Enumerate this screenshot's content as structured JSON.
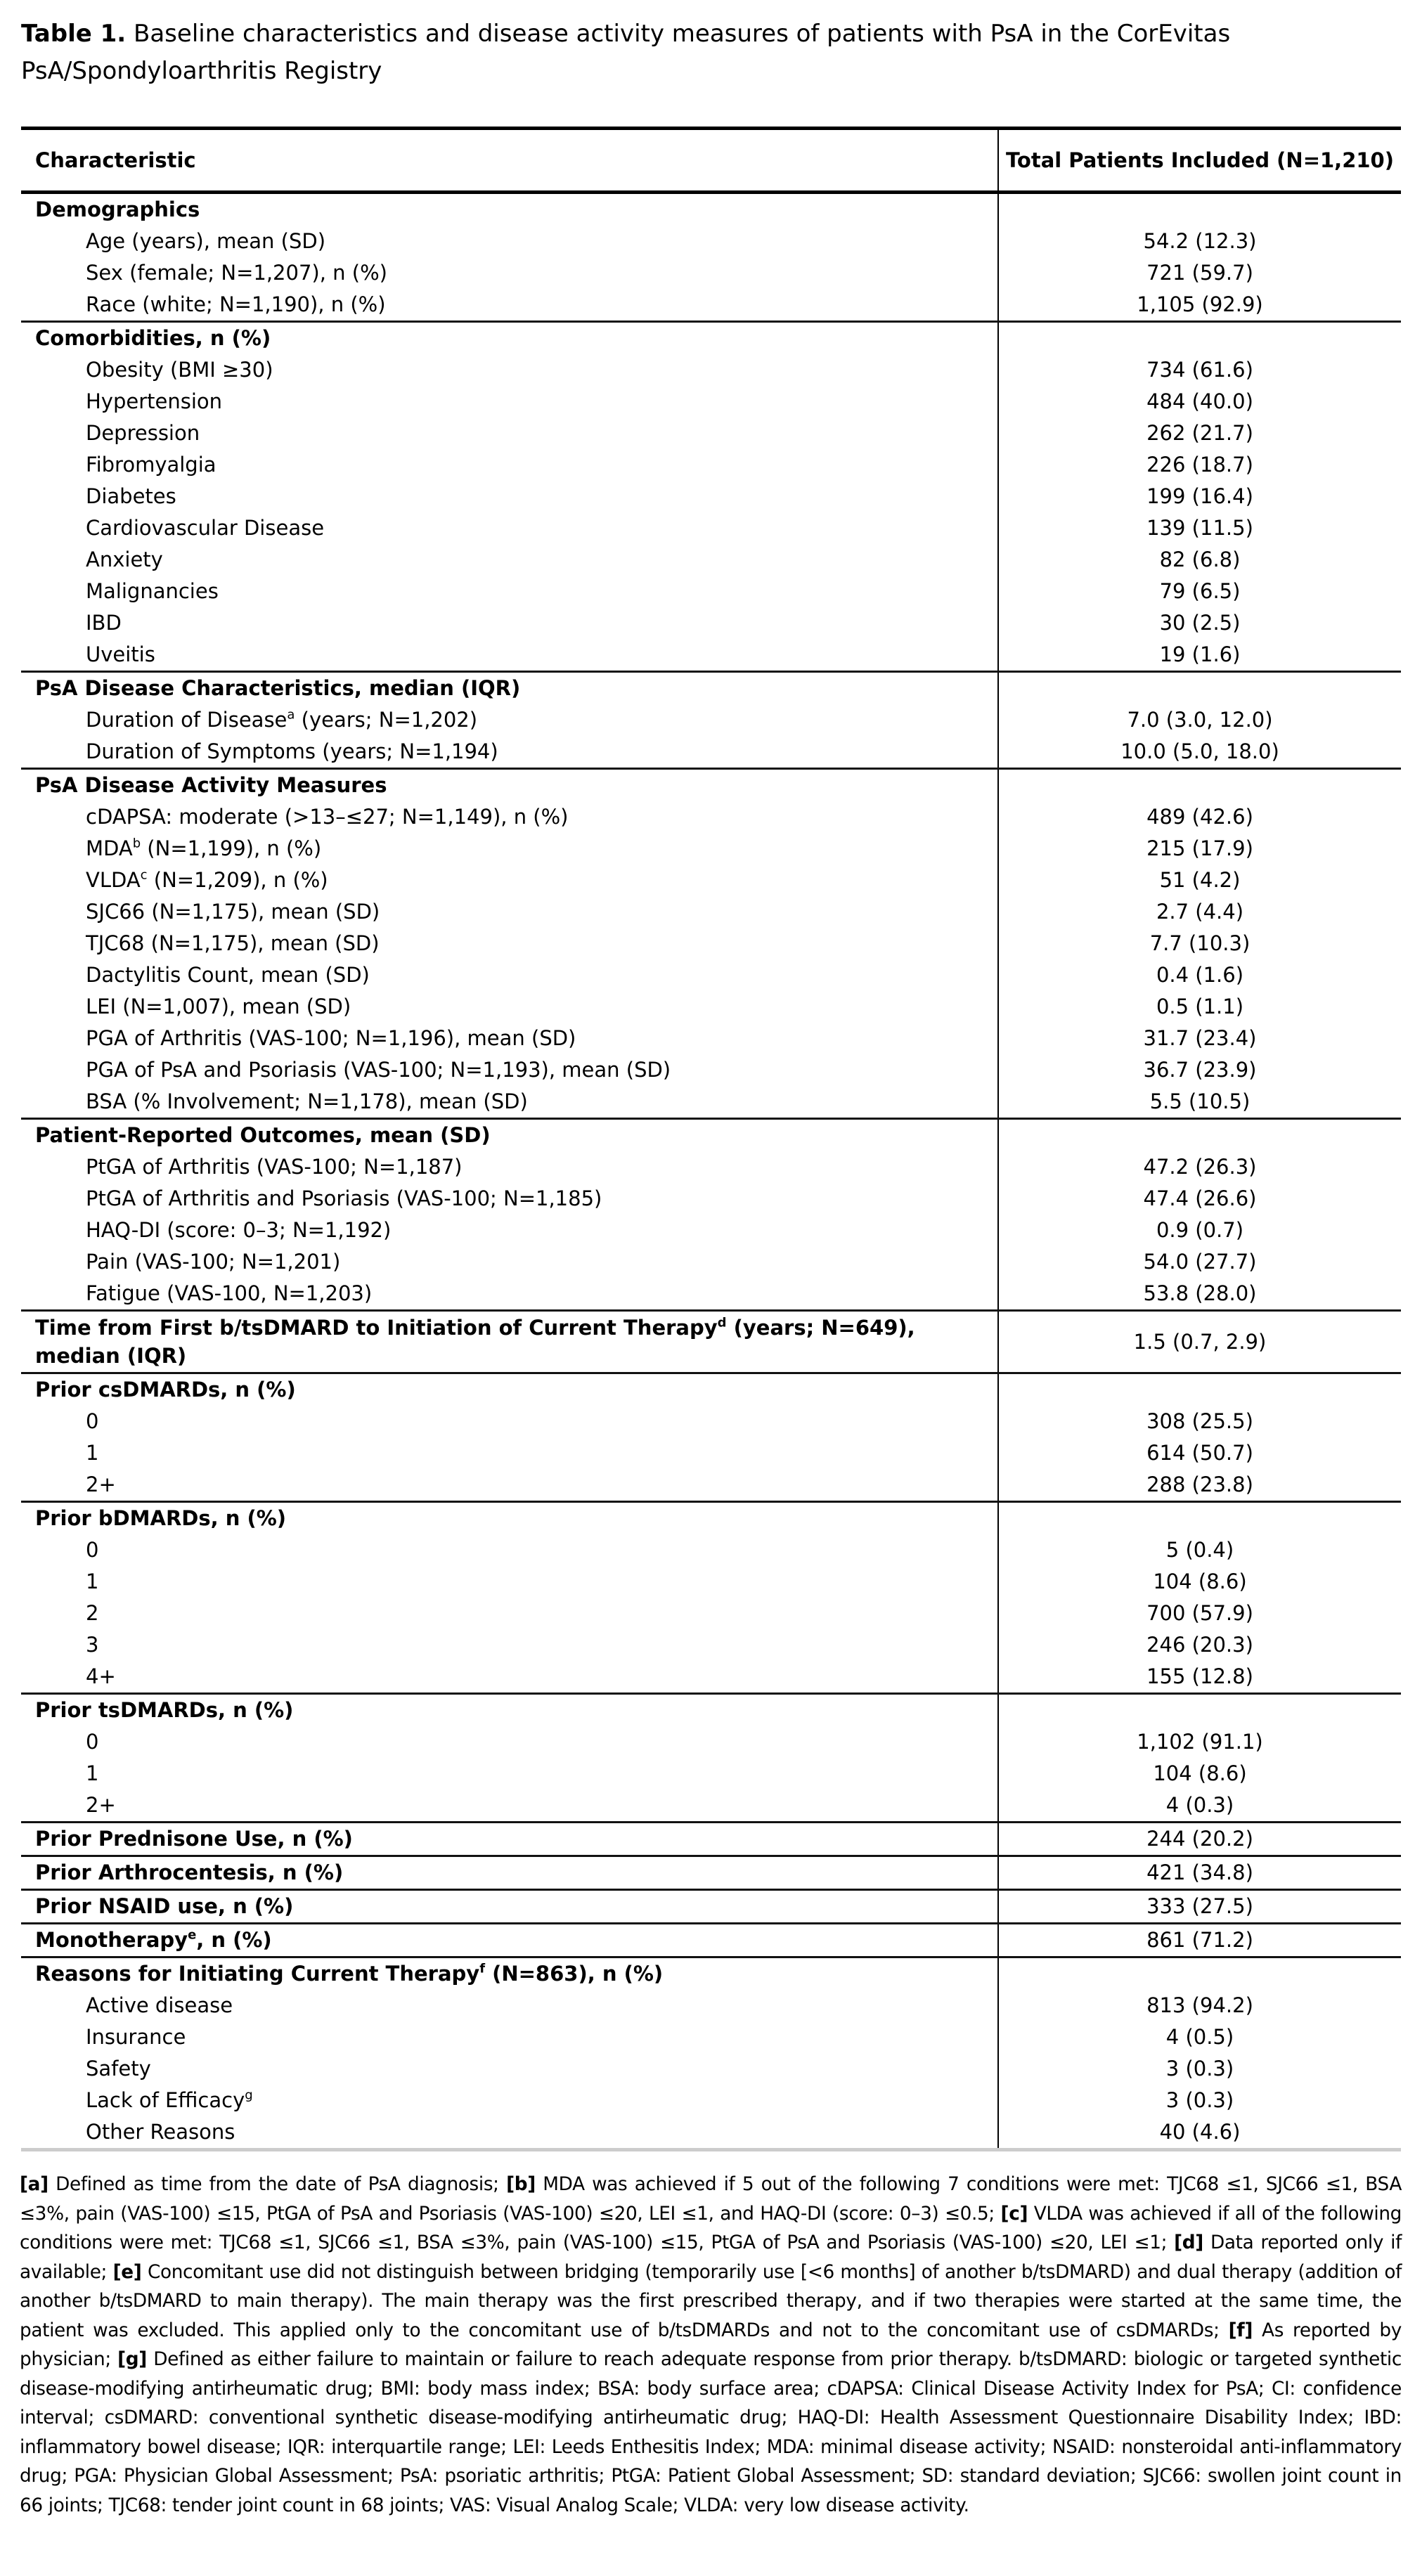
{
  "title": {
    "label": "Table 1.",
    "text": " Baseline characteristics and disease activity measures of patients with PsA in the CorEvitas PsA/Spondyloarthritis Registry"
  },
  "table": {
    "col_characteristic": "Characteristic",
    "col_total": "Total Patients Included (N=1,210)",
    "sections": [
      {
        "label": "Demographics",
        "items": [
          {
            "label": "Age (years), mean (SD)",
            "value": "54.2 (12.3)"
          },
          {
            "label": "Sex (female; N=1,207), n (%)",
            "value": "721 (59.7)"
          },
          {
            "label": "Race (white; N=1,190), n (%)",
            "value": "1,105 (92.9)"
          }
        ]
      },
      {
        "label": "Comorbidities, n (%)",
        "items": [
          {
            "label": "Obesity (BMI ≥30)",
            "value": "734 (61.6)"
          },
          {
            "label": "Hypertension",
            "value": "484 (40.0)"
          },
          {
            "label": "Depression",
            "value": "262 (21.7)"
          },
          {
            "label": "Fibromyalgia",
            "value": "226 (18.7)"
          },
          {
            "label": "Diabetes",
            "value": "199 (16.4)"
          },
          {
            "label": "Cardiovascular Disease",
            "value": "139 (11.5)"
          },
          {
            "label": "Anxiety",
            "value": "82 (6.8)"
          },
          {
            "label": "Malignancies",
            "value": "79 (6.5)"
          },
          {
            "label": "IBD",
            "value": "30 (2.5)"
          },
          {
            "label": "Uveitis",
            "value": "19 (1.6)"
          }
        ]
      },
      {
        "label": "PsA Disease Characteristics, median (IQR)",
        "items": [
          {
            "label": "Duration of Disease",
            "sup": "a",
            "label_after": " (years; N=1,202)",
            "value": "7.0 (3.0, 12.0)"
          },
          {
            "label": "Duration of Symptoms (years; N=1,194)",
            "value": "10.0 (5.0, 18.0)"
          }
        ]
      },
      {
        "label": "PsA Disease Activity Measures",
        "items": [
          {
            "label": "cDAPSA: moderate (>13–≤27; N=1,149), n (%)",
            "value": "489 (42.6)"
          },
          {
            "label": "MDA",
            "sup": "b",
            "label_after": " (N=1,199), n (%)",
            "value": "215 (17.9)"
          },
          {
            "label": "VLDA",
            "sup": "c",
            "label_after": " (N=1,209), n (%)",
            "value": "51 (4.2)"
          },
          {
            "label": "SJC66 (N=1,175), mean (SD)",
            "value": "2.7 (4.4)"
          },
          {
            "label": "TJC68 (N=1,175), mean (SD)",
            "value": "7.7 (10.3)"
          },
          {
            "label": "Dactylitis Count, mean (SD)",
            "value": "0.4 (1.6)"
          },
          {
            "label": "LEI (N=1,007), mean (SD)",
            "value": "0.5 (1.1)"
          },
          {
            "label": "PGA of Arthritis (VAS-100; N=1,196), mean (SD)",
            "value": "31.7 (23.4)"
          },
          {
            "label": "PGA of PsA and Psoriasis (VAS-100; N=1,193), mean (SD)",
            "value": "36.7 (23.9)"
          },
          {
            "label": "BSA (% Involvement; N=1,178), mean (SD)",
            "value": "5.5 (10.5)"
          }
        ]
      },
      {
        "label": "Patient-Reported Outcomes, mean (SD)",
        "items": [
          {
            "label": "PtGA of Arthritis (VAS-100; N=1,187)",
            "value": "47.2 (26.3)"
          },
          {
            "label": "PtGA of Arthritis and Psoriasis (VAS-100; N=1,185)",
            "value": "47.4 (26.6)"
          },
          {
            "label": "HAQ-DI (score: 0–3; N=1,192)",
            "value": "0.9 (0.7)"
          },
          {
            "label": "Pain (VAS-100; N=1,201)",
            "value": "54.0 (27.7)"
          },
          {
            "label": "Fatigue (VAS-100, N=1,203)",
            "value": "53.8 (28.0)"
          }
        ]
      },
      {
        "label": "Time from First b/tsDMARD to Initiation of Current Therapy",
        "sup": "d",
        "label_after": " (years; N=649), median (IQR)",
        "value": "1.5 (0.7, 2.9)",
        "multiline": true,
        "items": []
      },
      {
        "label": "Prior csDMARDs, n (%)",
        "items": [
          {
            "label": "0",
            "value": "308 (25.5)"
          },
          {
            "label": "1",
            "value": "614 (50.7)"
          },
          {
            "label": "2+",
            "value": "288 (23.8)"
          }
        ]
      },
      {
        "label": "Prior bDMARDs, n (%)",
        "items": [
          {
            "label": "0",
            "value": "5 (0.4)"
          },
          {
            "label": "1",
            "value": "104 (8.6)"
          },
          {
            "label": "2",
            "value": "700 (57.9)"
          },
          {
            "label": "3",
            "value": "246 (20.3)"
          },
          {
            "label": "4+",
            "value": "155 (12.8)"
          }
        ]
      },
      {
        "label": "Prior tsDMARDs, n (%)",
        "items": [
          {
            "label": "0",
            "value": "1,102 (91.1)"
          },
          {
            "label": "1",
            "value": "104 (8.6)"
          },
          {
            "label": "2+",
            "value": "4 (0.3)"
          }
        ]
      },
      {
        "label": "Prior Prednisone Use, n (%)",
        "value": "244 (20.2)",
        "items": []
      },
      {
        "label": "Prior Arthrocentesis, n (%)",
        "value": "421 (34.8)",
        "items": []
      },
      {
        "label": "Prior NSAID use, n (%)",
        "value": "333 (27.5)",
        "items": []
      },
      {
        "label": "Monotherapy",
        "sup": "e",
        "label_after": ", n (%)",
        "value": "861 (71.2)",
        "items": []
      },
      {
        "label": "Reasons for Initiating Current Therapy",
        "sup": "f",
        "label_after": " (N=863), n (%)",
        "items": [
          {
            "label": "Active disease",
            "value": "813 (94.2)"
          },
          {
            "label": "Insurance",
            "value": "4 (0.5)"
          },
          {
            "label": "Safety",
            "value": "3 (0.3)"
          },
          {
            "label": "Lack of Efficacy",
            "sup": "g",
            "value": "3 (0.3)"
          },
          {
            "label": "Other Reasons",
            "value": "40 (4.6)"
          }
        ]
      }
    ]
  },
  "footnotes": [
    {
      "key": "[a]",
      "text": " Defined as time from the date of PsA diagnosis; "
    },
    {
      "key": "[b]",
      "text": " MDA was achieved if 5 out of the following 7 conditions were met: TJC68 ≤1, SJC66 ≤1, BSA ≤3%, pain (VAS-100) ≤15, PtGA of PsA and Psoriasis (VAS-100) ≤20, LEI ≤1, and HAQ-DI (score: 0–3) ≤0.5; "
    },
    {
      "key": "[c]",
      "text": " VLDA was achieved if all of the following conditions were met: TJC68 ≤1, SJC66 ≤1, BSA ≤3%, pain (VAS-100) ≤15, PtGA of PsA and Psoriasis (VAS-100) ≤20, LEI ≤1; "
    },
    {
      "key": "[d]",
      "text": " Data reported only if available; "
    },
    {
      "key": "[e]",
      "text": " Concomitant use did not distinguish between bridging (temporarily use [<6 months] of another b/tsDMARD) and dual therapy (addition of another b/tsDMARD to main therapy). The main therapy was the first prescribed therapy, and if two therapies were started at the same time, the patient was excluded. This applied only to the concomitant use of b/tsDMARDs and not to the concomitant use of csDMARDs; "
    },
    {
      "key": "[f]",
      "text": " As reported by physician; "
    },
    {
      "key": "[g]",
      "text": " Defined as either failure to maintain or failure to reach adequate response from prior therapy. b/tsDMARD: biologic or targeted synthetic disease-modifying antirheumatic drug; BMI: body mass index; BSA: body surface area; cDAPSA: Clinical Disease Activity Index for PsA; CI: confidence interval; csDMARD: conventional synthetic disease-modifying antirheumatic drug; HAQ-DI: Health Assessment Questionnaire Disability Index; IBD: inflammatory bowel disease; IQR: interquartile range; LEI: Leeds Enthesitis Index; MDA: minimal disease activity; NSAID: nonsteroidal anti-inflammatory drug; PGA: Physician Global Assessment; PsA: psoriatic arthritis; PtGA: Patient Global Assessment; SD: standard deviation; SJC66: swollen joint count in 66 joints; TJC68: tender joint count in 68 joints; VAS: Visual Analog Scale; VLDA: very low disease activity."
    }
  ]
}
